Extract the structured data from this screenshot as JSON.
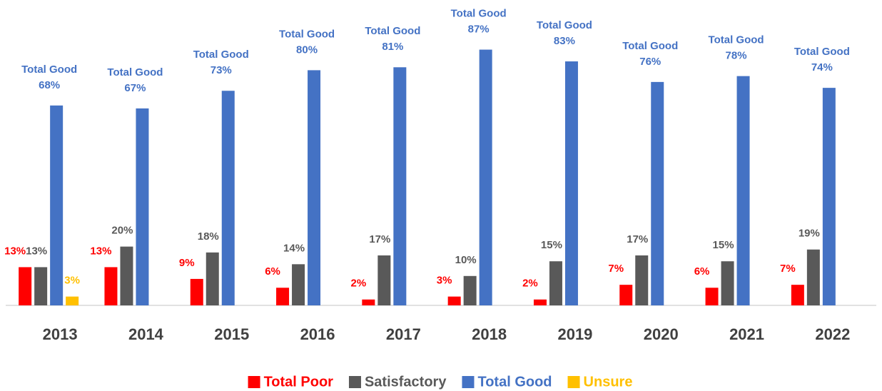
{
  "chart_data": {
    "type": "bar",
    "categories": [
      "2013",
      "2014",
      "2015",
      "2016",
      "2017",
      "2018",
      "2019",
      "2020",
      "2021",
      "2022"
    ],
    "series": [
      {
        "name": "Total Poor",
        "color": "#ff0000",
        "values": [
          13,
          13,
          9,
          6,
          2,
          3,
          2,
          7,
          6,
          7
        ],
        "value_labels": [
          "13%",
          "13%",
          "9%",
          "6%",
          "2%",
          "3%",
          "2%",
          "7%",
          "6%",
          "7%"
        ]
      },
      {
        "name": "Satisfactory",
        "color": "#595959",
        "values": [
          13,
          20,
          18,
          14,
          17,
          10,
          15,
          17,
          15,
          19
        ],
        "value_labels": [
          "13%",
          "20%",
          "18%",
          "14%",
          "17%",
          "10%",
          "15%",
          "17%",
          "15%",
          "19%"
        ]
      },
      {
        "name": "Total Good",
        "color": "#4472c4",
        "values": [
          68,
          67,
          73,
          80,
          81,
          87,
          83,
          76,
          78,
          74
        ],
        "value_labels": [
          "68%",
          "67%",
          "73%",
          "80%",
          "81%",
          "87%",
          "83%",
          "76%",
          "78%",
          "74%"
        ]
      },
      {
        "name": "Unsure",
        "color": "#ffc000",
        "values": [
          3,
          null,
          null,
          null,
          null,
          null,
          null,
          null,
          null,
          null
        ],
        "value_labels": [
          "3%",
          null,
          null,
          null,
          null,
          null,
          null,
          null,
          null,
          null
        ]
      }
    ],
    "ylim": [
      0,
      100
    ],
    "legend": "bottom"
  }
}
